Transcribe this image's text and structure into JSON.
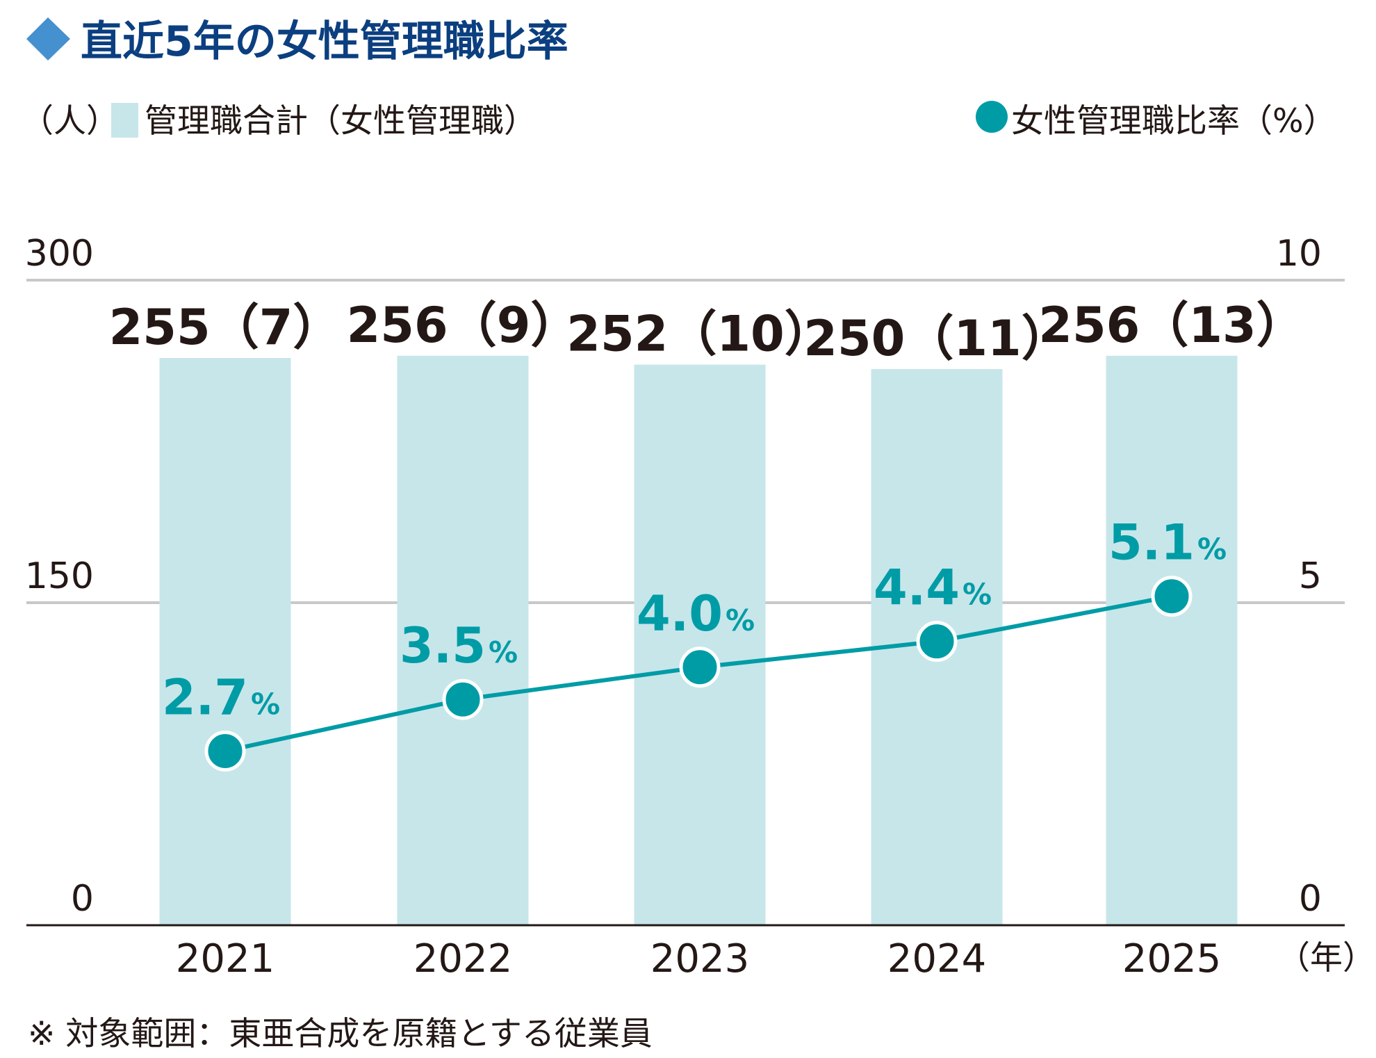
{
  "title": "直近5年の女性管理職比率",
  "legend": {
    "left_unit": "（人）",
    "bars_label": "管理職合計（女性管理職）",
    "line_label": "女性管理職比率（%）"
  },
  "x_unit": "（年）",
  "footnote": "※ 対象範囲：東亜合成を原籍とする従業員",
  "colors": {
    "title": "#0b3f80",
    "diamond": "#4590cf",
    "bar": "#c7e6ea",
    "line": "#009ca6",
    "grid": "#c8c8c8",
    "axis": "#231815"
  },
  "chart_data": {
    "type": "bar+line",
    "title": "直近5年の女性管理職比率",
    "categories": [
      "2021",
      "2022",
      "2023",
      "2024",
      "2025"
    ],
    "series": [
      {
        "name": "管理職合計（女性管理職）",
        "type": "bar",
        "axis": "left",
        "values": [
          255,
          256,
          252,
          250,
          256
        ],
        "female_managers": [
          7,
          9,
          10,
          11,
          13
        ],
        "labels": [
          "255（7）",
          "256（9）",
          "252（10）",
          "250（11）",
          "256（13）"
        ]
      },
      {
        "name": "女性管理職比率（%）",
        "type": "line",
        "axis": "right",
        "values": [
          2.7,
          3.5,
          4.0,
          4.4,
          5.1
        ],
        "labels": [
          "2.7",
          "3.5",
          "4.0",
          "4.4",
          "5.1"
        ],
        "label_suffix": "%"
      }
    ],
    "left_axis": {
      "unit": "（人）",
      "ylim": [
        0,
        300
      ],
      "ticks": [
        "0",
        "150",
        "300"
      ]
    },
    "right_axis": {
      "unit": "（%）",
      "ylim": [
        0,
        10
      ],
      "ticks": [
        "0",
        "5",
        "10"
      ]
    },
    "xlabel": "（年）",
    "grid": true,
    "legend_placement": "top"
  }
}
